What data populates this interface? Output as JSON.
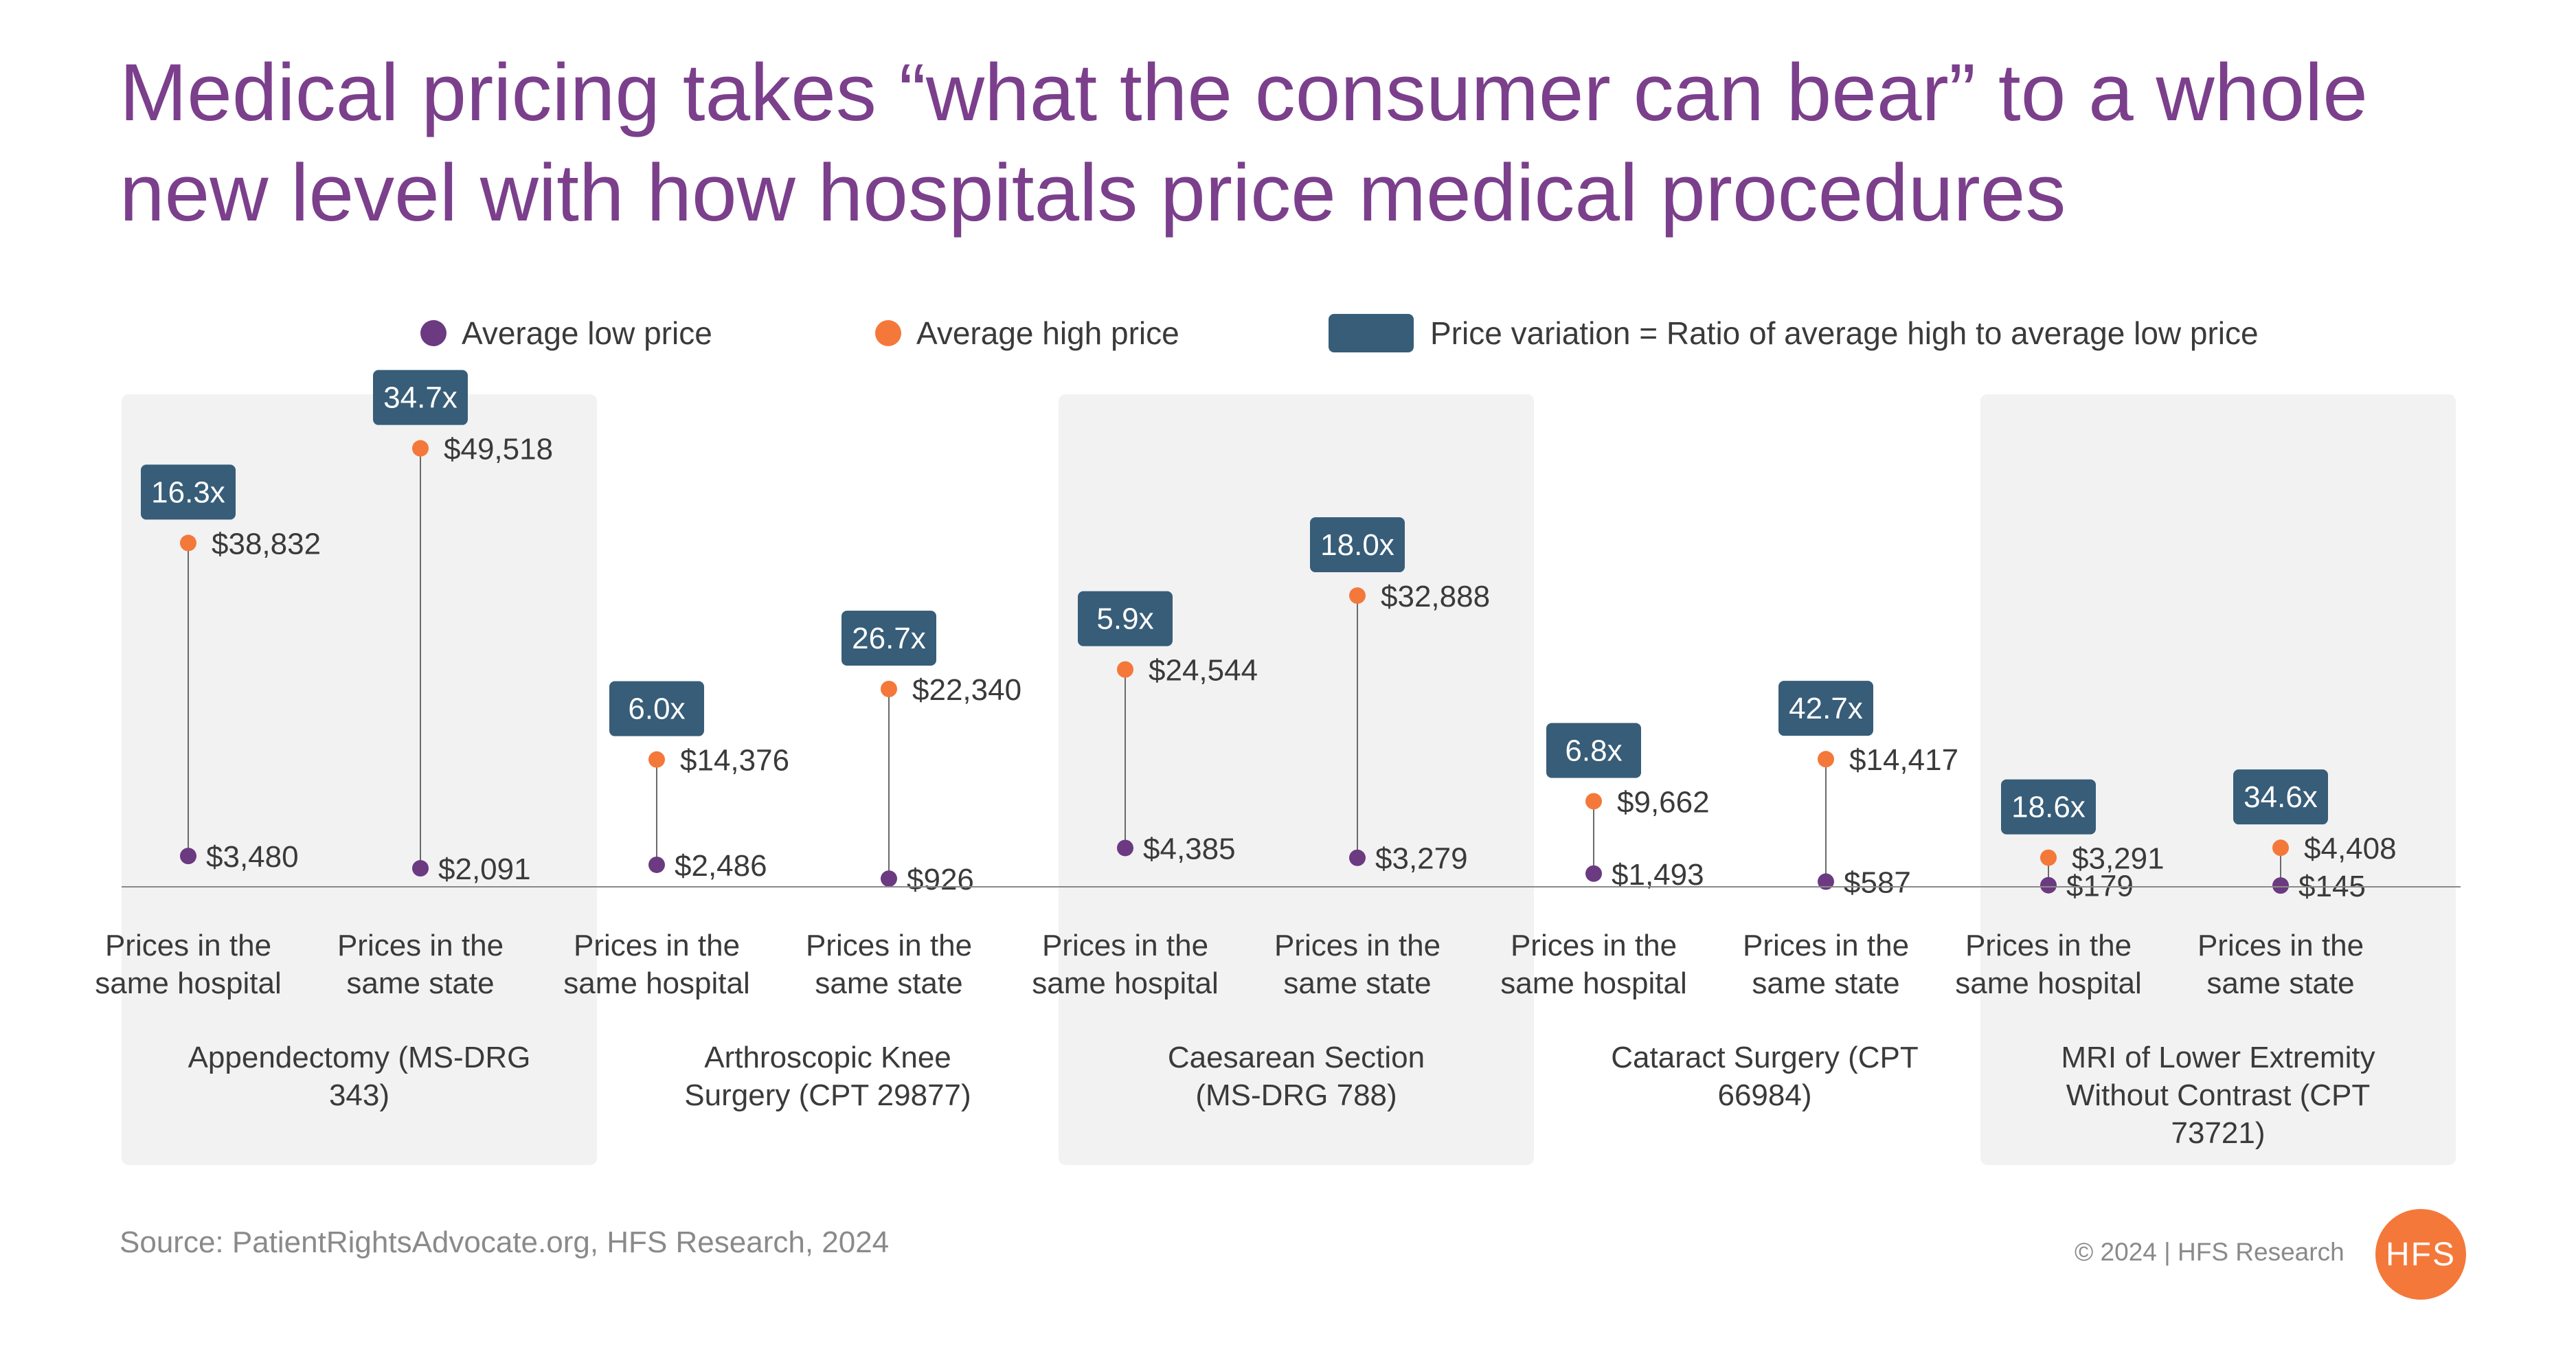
{
  "title": "Medical pricing takes “what the consumer can bear” to a whole new level with how hospitals price medical procedures",
  "legend": {
    "low": "Average low price",
    "high": "Average high price",
    "ratio": "Price variation = Ratio of average high to average low price"
  },
  "colors": {
    "low": "#6b3a80",
    "high": "#f4783a",
    "ratio": "#375d78",
    "panel": "#f2f2f2",
    "title": "#7b3f8c"
  },
  "chart_data": {
    "type": "dot-range",
    "groups": [
      {
        "label": "Appendectomy (MS-DRG 343)",
        "shaded": true,
        "items": [
          {
            "label": "Prices in the same hospital",
            "low": 3480,
            "low_label": "$3,480",
            "high": 38832,
            "high_label": "$38,832",
            "ratio": "16.3x"
          },
          {
            "label": "Prices in the same state",
            "low": 2091,
            "low_label": "$2,091",
            "high": 49518,
            "high_label": "$49,518",
            "ratio": "34.7x"
          }
        ]
      },
      {
        "label": "Arthroscopic Knee Surgery (CPT 29877)",
        "shaded": false,
        "items": [
          {
            "label": "Prices in the same hospital",
            "low": 2486,
            "low_label": "$2,486",
            "high": 14376,
            "high_label": "$14,376",
            "ratio": "6.0x"
          },
          {
            "label": "Prices in the same state",
            "low": 926,
            "low_label": "$926",
            "high": 22340,
            "high_label": "$22,340",
            "ratio": "26.7x"
          }
        ]
      },
      {
        "label": "Caesarean Section (MS-DRG 788)",
        "shaded": true,
        "items": [
          {
            "label": "Prices in the same hospital",
            "low": 4385,
            "low_label": "$4,385",
            "high": 24544,
            "high_label": "$24,544",
            "ratio": "5.9x"
          },
          {
            "label": "Prices in the same state",
            "low": 3279,
            "low_label": "$3,279",
            "high": 32888,
            "high_label": "$32,888",
            "ratio": "18.0x"
          }
        ]
      },
      {
        "label": "Cataract Surgery (CPT 66984)",
        "shaded": false,
        "items": [
          {
            "label": "Prices in the same hospital",
            "low": 1493,
            "low_label": "$1,493",
            "high": 9662,
            "high_label": "$9,662",
            "ratio": "6.8x"
          },
          {
            "label": "Prices in the same state",
            "low": 587,
            "low_label": "$587",
            "high": 14417,
            "high_label": "$14,417",
            "ratio": "42.7x"
          }
        ]
      },
      {
        "label": "MRI of Lower Extremity Without Contrast (CPT 73721)",
        "shaded": true,
        "items": [
          {
            "label": "Prices in the same hospital",
            "low": 179,
            "low_label": "$179",
            "high": 3291,
            "high_label": "$3,291",
            "ratio": "18.6x"
          },
          {
            "label": "Prices in the same state",
            "low": 145,
            "low_label": "$145",
            "high": 4408,
            "high_label": "$4,408",
            "ratio": "34.6x"
          }
        ]
      }
    ],
    "ylim": [
      0,
      52000
    ]
  },
  "footer": {
    "source": "Source: PatientRightsAdvocate.org, HFS Research, 2024",
    "copyright": "© 2024 | HFS Research",
    "logo_text": "HFS"
  }
}
